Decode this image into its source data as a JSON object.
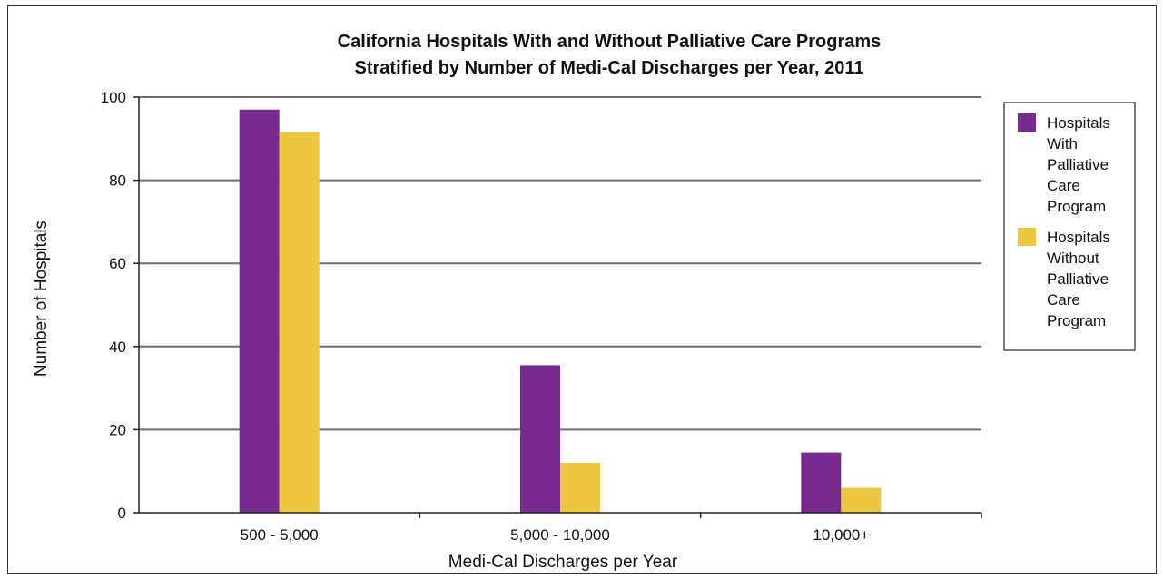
{
  "chart_data": {
    "type": "bar",
    "title_lines": [
      "California Hospitals With and Without Palliative Care Programs",
      "Stratified by Number of Medi-Cal Discharges per Year, 2011"
    ],
    "xlabel": "Medi-Cal Discharges per Year",
    "ylabel": "Number of Hospitals",
    "categories": [
      "500 - 5,000",
      "5,000 - 10,000",
      "10,000+"
    ],
    "y_ticks": [
      "0",
      "20",
      "40",
      "60",
      "80",
      "100"
    ],
    "ylim": [
      0,
      100
    ],
    "grid": true,
    "legend_position": "right",
    "series": [
      {
        "name": "Hospitals With Palliative Care Program",
        "legend_lines": [
          "Hospitals",
          "With",
          "Palliative",
          "Care",
          "Program"
        ],
        "color": "#772b8f",
        "values": [
          97,
          35.5,
          14.5
        ]
      },
      {
        "name": "Hospitals Without Palliative Care Program",
        "legend_lines": [
          "Hospitals",
          "Without",
          "Palliative",
          "Care",
          "Program"
        ],
        "color": "#ecc63f",
        "values": [
          91.5,
          12,
          6
        ]
      }
    ]
  }
}
